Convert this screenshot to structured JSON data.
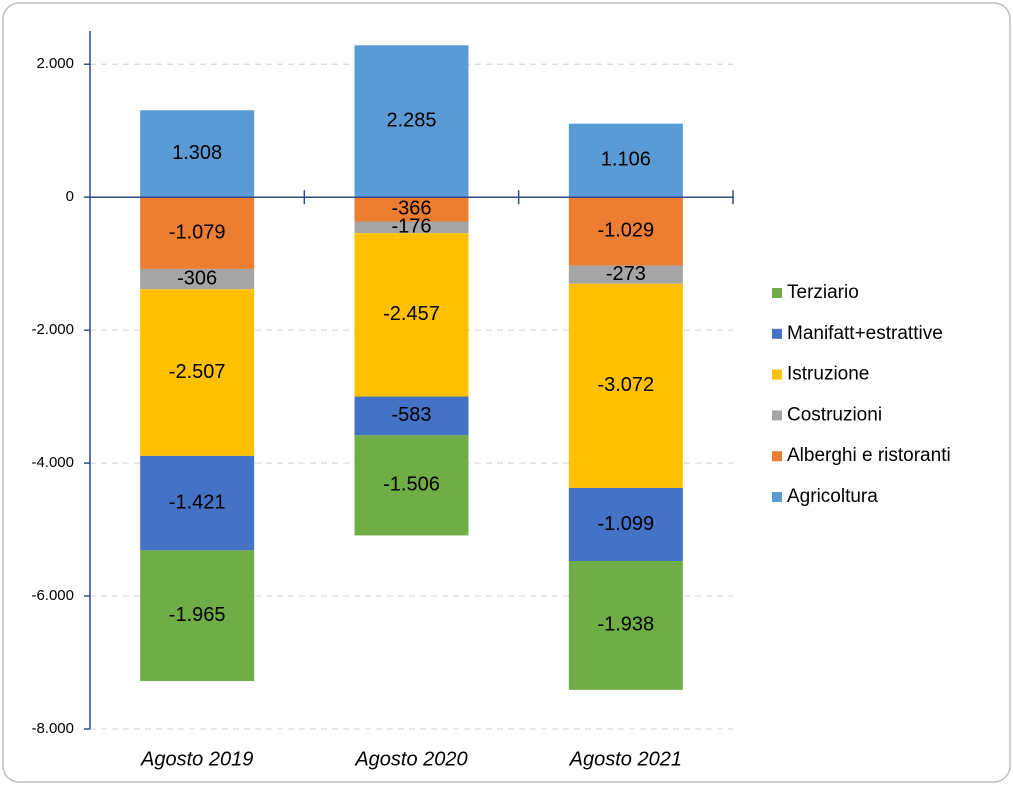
{
  "chart_data": {
    "type": "stacked-bar",
    "categories": [
      "Agosto 2019",
      "Agosto 2020",
      "Agosto 2021"
    ],
    "series": [
      {
        "name": "Terziario",
        "color": "#70ad47",
        "values": [
          -1965,
          -1506,
          -1938
        ],
        "value_labels": [
          "-1.965",
          "-1.506",
          "-1.938"
        ]
      },
      {
        "name": "Manifatt+estrattive",
        "color": "#4472c4",
        "values": [
          -1421,
          -583,
          -1099
        ],
        "value_labels": [
          "-1.421",
          "-583",
          "-1.099"
        ]
      },
      {
        "name": "Istruzione",
        "color": "#ffc000",
        "values": [
          -2507,
          -2457,
          -3072
        ],
        "value_labels": [
          "-2.507",
          "-2.457",
          "-3.072"
        ]
      },
      {
        "name": "Costruzioni",
        "color": "#a5a5a5",
        "values": [
          -306,
          -176,
          -273
        ],
        "value_labels": [
          "-306",
          "-176",
          "-273"
        ]
      },
      {
        "name": "Alberghi e ristoranti",
        "color": "#ed7d31",
        "values": [
          -1079,
          -366,
          -1029
        ],
        "value_labels": [
          "-1.079",
          "-366",
          "-1.029"
        ]
      },
      {
        "name": "Agricoltura",
        "color": "#5b9bd5",
        "values": [
          1308,
          2285,
          1106
        ],
        "value_labels": [
          "1.308",
          "2.285",
          "1.106"
        ]
      }
    ],
    "ylim": [
      -8000,
      2500
    ],
    "yticks": [
      {
        "value": -8000,
        "label": "-8.000"
      },
      {
        "value": -6000,
        "label": "-6.000"
      },
      {
        "value": -4000,
        "label": "-4.000"
      },
      {
        "value": -2000,
        "label": "-2.000"
      },
      0,
      {
        "value": 2000,
        "label": "2.000"
      }
    ],
    "grid": true,
    "legend": "right"
  }
}
